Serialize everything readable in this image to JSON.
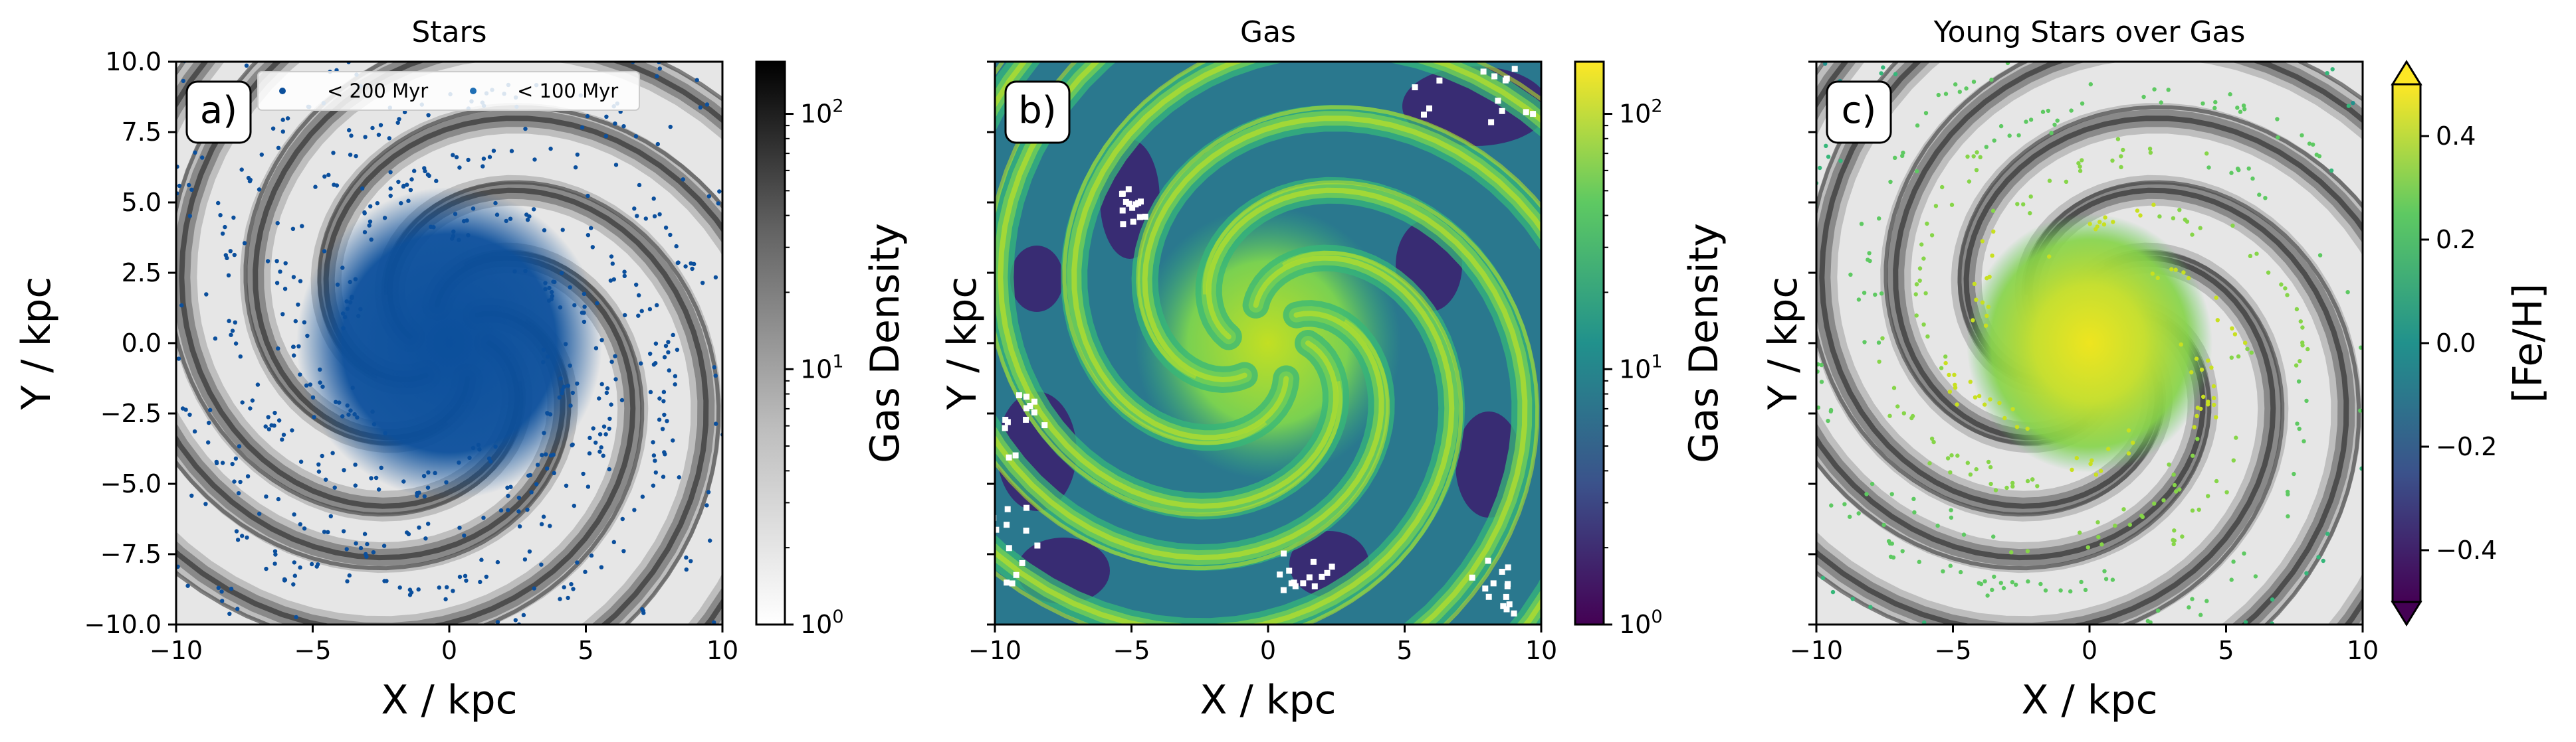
{
  "chart_data": [
    {
      "type": "heatmap+scatter",
      "panel_label": "a)",
      "title": "Stars",
      "xlabel": "X / kpc",
      "ylabel": "Y / kpc",
      "xlim": [
        -10,
        10
      ],
      "ylim": [
        -10,
        10
      ],
      "xticks": [
        -10,
        -5,
        0,
        5,
        10
      ],
      "yticks": [
        -10.0,
        -7.5,
        -5.0,
        -2.5,
        0.0,
        2.5,
        5.0,
        7.5,
        10.0
      ],
      "background": "gas density map (greys colormap, log scale)",
      "legend": {
        "position": "top-center",
        "entries": [
          "< 200 Myr",
          "< 100 Myr"
        ]
      },
      "series": [
        {
          "name": "< 200 Myr",
          "color": "#0b4f9c",
          "marker": "dot"
        },
        {
          "name": "< 100 Myr",
          "color": "#1f6fb5",
          "marker": "dot"
        }
      ],
      "colorbar": {
        "label": "Gas Density",
        "scale": "log",
        "range": [
          1,
          160
        ],
        "ticks": [
          "10^0",
          "10^1",
          "10^2"
        ],
        "cmap": "Greys"
      }
    },
    {
      "type": "heatmap",
      "panel_label": "b)",
      "title": "Gas",
      "xlabel": "X / kpc",
      "ylabel": "Y / kpc",
      "xlim": [
        -10,
        10
      ],
      "ylim": [
        -10,
        10
      ],
      "xticks": [
        -10,
        -5,
        0,
        5,
        10
      ],
      "colorbar": {
        "label": "Gas Density",
        "scale": "log",
        "range": [
          1,
          160
        ],
        "ticks": [
          "10^0",
          "10^1",
          "10^2"
        ],
        "cmap": "viridis"
      }
    },
    {
      "type": "heatmap+scatter",
      "panel_label": "c)",
      "title": "Young Stars over Gas",
      "xlabel": "X / kpc",
      "ylabel": "Y / kpc",
      "xlim": [
        -10,
        10
      ],
      "ylim": [
        -10,
        10
      ],
      "xticks": [
        -10,
        -5,
        0,
        5,
        10
      ],
      "background": "gas density map (greys colormap, log scale)",
      "color_by": "[Fe/H]",
      "colorbar": {
        "label": "[Fe/H]",
        "scale": "linear",
        "range": [
          -0.5,
          0.5
        ],
        "ticks": [
          -0.4,
          -0.2,
          0.0,
          0.2,
          0.4
        ],
        "tick_labels": [
          "−0.4",
          "−0.2",
          "0.0",
          "0.2",
          "0.4"
        ],
        "extend": "both",
        "cmap": "viridis"
      }
    }
  ],
  "colors": {
    "star_blue": "#0b4f9c",
    "viridis_low": "#440154",
    "viridis_mid": "#21918c",
    "viridis_high": "#fde725"
  }
}
